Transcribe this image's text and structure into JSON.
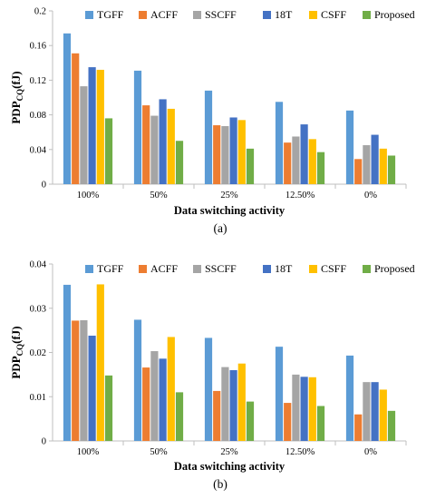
{
  "chart_data": [
    {
      "type": "bar",
      "caption": "(a)",
      "xlabel": "Data switching activity",
      "ylabel_main": "PDP",
      "ylabel_sub": "CQ",
      "ylabel_unit": "(fJ)",
      "ylim": [
        0,
        0.2
      ],
      "yticks": [
        "0",
        "0.04",
        "0.08",
        "0.12",
        "0.16",
        "0.2"
      ],
      "ytick_values": [
        0,
        0.04,
        0.08,
        0.12,
        0.16,
        0.2
      ],
      "legend_position": "top-right",
      "grid": false,
      "categories": [
        "100%",
        "50%",
        "25%",
        "12.50%",
        "0%"
      ],
      "series": [
        {
          "name": "TGFF",
          "color": "#5b9bd5",
          "values": [
            0.174,
            0.131,
            0.108,
            0.095,
            0.085
          ]
        },
        {
          "name": "ACFF",
          "color": "#ed7d31",
          "values": [
            0.151,
            0.091,
            0.068,
            0.048,
            0.029
          ]
        },
        {
          "name": "SSCFF",
          "color": "#a5a5a5",
          "values": [
            0.113,
            0.079,
            0.067,
            0.055,
            0.045
          ]
        },
        {
          "name": "18T",
          "color": "#4472c4",
          "values": [
            0.135,
            0.098,
            0.077,
            0.069,
            0.057
          ]
        },
        {
          "name": "CSFF",
          "color": "#ffc000",
          "values": [
            0.132,
            0.087,
            0.074,
            0.052,
            0.041
          ]
        },
        {
          "name": "Proposed",
          "color": "#70ad47",
          "values": [
            0.076,
            0.05,
            0.041,
            0.037,
            0.033
          ]
        }
      ]
    },
    {
      "type": "bar",
      "caption": "(b)",
      "xlabel": "Data switching activity",
      "ylabel_main": "PDP",
      "ylabel_sub": "CQ",
      "ylabel_unit": "(fJ)",
      "ylim": [
        0,
        0.04
      ],
      "yticks": [
        "0",
        "0.01",
        "0.02",
        "0.03",
        "0.04"
      ],
      "ytick_values": [
        0,
        0.01,
        0.02,
        0.03,
        0.04
      ],
      "legend_position": "top-right",
      "grid": false,
      "categories": [
        "100%",
        "50%",
        "25%",
        "12.50%",
        "0%"
      ],
      "series": [
        {
          "name": "TGFF",
          "color": "#5b9bd5",
          "values": [
            0.0353,
            0.0274,
            0.0233,
            0.0213,
            0.0193
          ]
        },
        {
          "name": "ACFF",
          "color": "#ed7d31",
          "values": [
            0.0272,
            0.0166,
            0.0113,
            0.0086,
            0.006
          ]
        },
        {
          "name": "SSCFF",
          "color": "#a5a5a5",
          "values": [
            0.0273,
            0.0203,
            0.0167,
            0.015,
            0.0133
          ]
        },
        {
          "name": "18T",
          "color": "#4472c4",
          "values": [
            0.0238,
            0.0186,
            0.016,
            0.0145,
            0.0133
          ]
        },
        {
          "name": "CSFF",
          "color": "#ffc000",
          "values": [
            0.0354,
            0.0235,
            0.0175,
            0.0144,
            0.0116
          ]
        },
        {
          "name": "Proposed",
          "color": "#70ad47",
          "values": [
            0.0148,
            0.011,
            0.0089,
            0.0079,
            0.0068
          ]
        }
      ]
    }
  ]
}
